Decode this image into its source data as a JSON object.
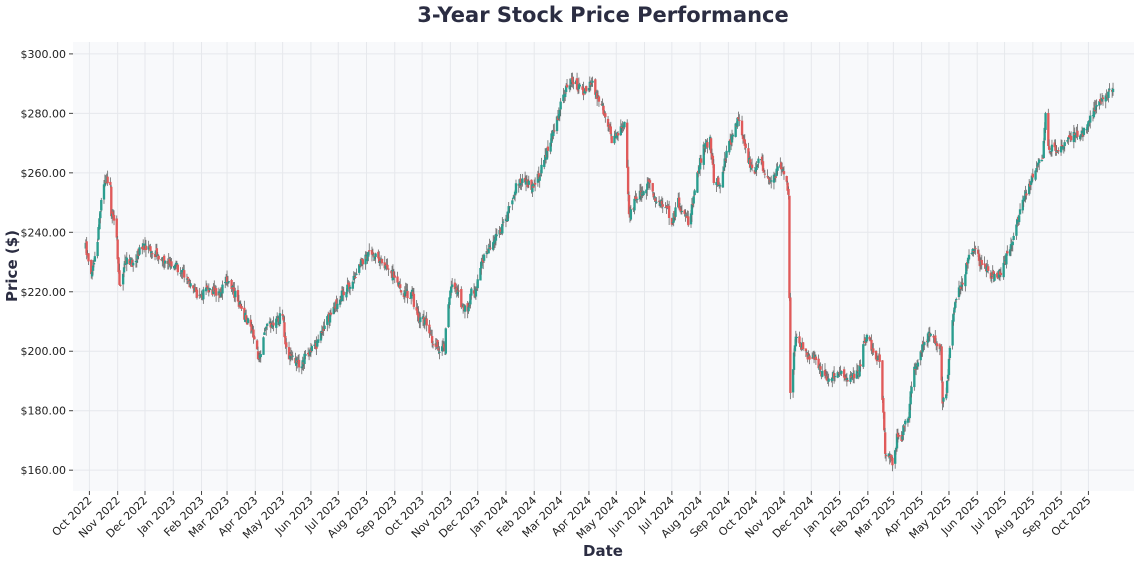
{
  "chart_data": {
    "type": "candlestick",
    "title": "3-Year Stock Price Performance",
    "xlabel": "Date",
    "ylabel": "Price ($)",
    "ylim": [
      153,
      304
    ],
    "yticks": [
      160,
      180,
      200,
      220,
      240,
      260,
      280,
      300
    ],
    "ytick_labels": [
      "$160.00",
      "$180.00",
      "$200.00",
      "$220.00",
      "$240.00",
      "$260.00",
      "$280.00",
      "$300.00"
    ],
    "xlim": [
      "2022-09-13",
      "2025-11-20"
    ],
    "xticks": [
      "2022-10-01",
      "2022-11-01",
      "2022-12-01",
      "2023-01-01",
      "2023-02-01",
      "2023-03-01",
      "2023-04-01",
      "2023-05-01",
      "2023-06-01",
      "2023-07-01",
      "2023-08-01",
      "2023-09-01",
      "2023-10-01",
      "2023-11-01",
      "2023-12-01",
      "2024-01-01",
      "2024-02-01",
      "2024-03-01",
      "2024-04-01",
      "2024-05-01",
      "2024-06-01",
      "2024-07-01",
      "2024-08-01",
      "2024-09-01",
      "2024-10-01",
      "2024-11-01",
      "2024-12-01",
      "2025-01-01",
      "2025-02-01",
      "2025-03-01",
      "2025-04-01",
      "2025-05-01",
      "2025-06-01",
      "2025-07-01",
      "2025-08-01",
      "2025-09-01",
      "2025-10-01"
    ],
    "xtick_labels": [
      "Oct 2022",
      "Nov 2022",
      "Dec 2022",
      "Jan 2023",
      "Feb 2023",
      "Mar 2023",
      "Apr 2023",
      "May 2023",
      "Jun 2023",
      "Jul 2023",
      "Aug 2023",
      "Sep 2023",
      "Oct 2023",
      "Nov 2023",
      "Dec 2023",
      "Jan 2024",
      "Feb 2024",
      "Mar 2024",
      "Apr 2024",
      "May 2024",
      "Jun 2024",
      "Jul 2024",
      "Aug 2024",
      "Sep 2024",
      "Oct 2024",
      "Nov 2024",
      "Dec 2024",
      "Jan 2025",
      "Feb 2025",
      "Mar 2025",
      "Apr 2025",
      "May 2025",
      "Jun 2025",
      "Jul 2025",
      "Aug 2025",
      "Sep 2025",
      "Oct 2025"
    ],
    "up_color": "#2a9d8f",
    "down_color": "#e05a5a",
    "wick_color": "#666666",
    "grid": true,
    "start_date": "2022-09-27",
    "end_date": "2025-10-28",
    "close_anchors": [
      [
        "2022-09-27",
        235
      ],
      [
        "2022-10-02",
        226
      ],
      [
        "2022-10-08",
        232
      ],
      [
        "2022-10-14",
        250
      ],
      [
        "2022-10-19",
        258
      ],
      [
        "2022-10-24",
        256
      ],
      [
        "2022-10-25",
        246
      ],
      [
        "2022-10-30",
        243
      ],
      [
        "2022-11-03",
        222
      ],
      [
        "2022-11-10",
        230
      ],
      [
        "2022-11-20",
        230
      ],
      [
        "2022-11-28",
        236
      ],
      [
        "2022-12-10",
        233
      ],
      [
        "2022-12-25",
        230
      ],
      [
        "2023-01-10",
        227
      ],
      [
        "2023-01-20",
        222
      ],
      [
        "2023-01-30",
        218
      ],
      [
        "2023-02-10",
        221
      ],
      [
        "2023-02-20",
        219
      ],
      [
        "2023-03-01",
        224
      ],
      [
        "2023-03-10",
        219
      ],
      [
        "2023-03-20",
        212
      ],
      [
        "2023-03-28",
        208
      ],
      [
        "2023-04-02",
        200
      ],
      [
        "2023-04-06",
        197
      ],
      [
        "2023-04-12",
        208
      ],
      [
        "2023-04-22",
        210
      ],
      [
        "2023-05-01",
        212
      ],
      [
        "2023-05-05",
        200
      ],
      [
        "2023-05-12",
        197
      ],
      [
        "2023-05-20",
        195
      ],
      [
        "2023-05-30",
        200
      ],
      [
        "2023-06-08",
        202
      ],
      [
        "2023-06-15",
        208
      ],
      [
        "2023-06-25",
        214
      ],
      [
        "2023-07-05",
        219
      ],
      [
        "2023-07-15",
        222
      ],
      [
        "2023-07-25",
        229
      ],
      [
        "2023-08-05",
        233
      ],
      [
        "2023-08-20",
        229
      ],
      [
        "2023-09-01",
        225
      ],
      [
        "2023-09-10",
        220
      ],
      [
        "2023-09-20",
        219
      ],
      [
        "2023-09-26",
        211
      ],
      [
        "2023-10-05",
        210
      ],
      [
        "2023-10-12",
        204
      ],
      [
        "2023-10-20",
        201
      ],
      [
        "2023-10-26",
        201
      ],
      [
        "2023-10-28",
        212
      ],
      [
        "2023-11-01",
        222
      ],
      [
        "2023-11-08",
        221
      ],
      [
        "2023-11-14",
        214
      ],
      [
        "2023-11-20",
        214
      ],
      [
        "2023-11-25",
        221
      ],
      [
        "2023-11-28",
        220
      ],
      [
        "2023-12-05",
        230
      ],
      [
        "2023-12-15",
        236
      ],
      [
        "2023-12-25",
        240
      ],
      [
        "2024-01-05",
        248
      ],
      [
        "2024-01-12",
        256
      ],
      [
        "2024-01-20",
        258
      ],
      [
        "2024-01-30",
        255
      ],
      [
        "2024-02-05",
        259
      ],
      [
        "2024-02-10",
        262
      ],
      [
        "2024-02-18",
        270
      ],
      [
        "2024-02-25",
        277
      ],
      [
        "2024-03-05",
        287
      ],
      [
        "2024-03-12",
        291
      ],
      [
        "2024-03-20",
        289
      ],
      [
        "2024-03-28",
        287
      ],
      [
        "2024-04-04",
        290
      ],
      [
        "2024-04-12",
        285
      ],
      [
        "2024-04-20",
        278
      ],
      [
        "2024-04-26",
        271
      ],
      [
        "2024-05-05",
        275
      ],
      [
        "2024-05-12",
        278
      ],
      [
        "2024-05-13",
        261
      ],
      [
        "2024-05-15",
        246
      ],
      [
        "2024-05-25",
        252
      ],
      [
        "2024-06-05",
        256
      ],
      [
        "2024-06-15",
        251
      ],
      [
        "2024-06-25",
        248
      ],
      [
        "2024-07-01",
        244
      ],
      [
        "2024-07-08",
        250
      ],
      [
        "2024-07-15",
        246
      ],
      [
        "2024-07-20",
        243
      ],
      [
        "2024-07-28",
        258
      ],
      [
        "2024-08-05",
        269
      ],
      [
        "2024-08-12",
        271
      ],
      [
        "2024-08-16",
        258
      ],
      [
        "2024-08-22",
        256
      ],
      [
        "2024-08-30",
        267
      ],
      [
        "2024-09-06",
        272
      ],
      [
        "2024-09-12",
        279
      ],
      [
        "2024-09-17",
        270
      ],
      [
        "2024-09-25",
        263
      ],
      [
        "2024-10-01",
        260
      ],
      [
        "2024-10-05",
        266
      ],
      [
        "2024-10-12",
        259
      ],
      [
        "2024-10-20",
        258
      ],
      [
        "2024-10-28",
        262
      ],
      [
        "2024-11-03",
        258
      ],
      [
        "2024-11-06",
        252
      ],
      [
        "2024-11-08",
        187
      ],
      [
        "2024-11-10",
        192
      ],
      [
        "2024-11-14",
        206
      ],
      [
        "2024-11-20",
        202
      ],
      [
        "2024-11-28",
        198
      ],
      [
        "2024-12-05",
        199
      ],
      [
        "2024-12-12",
        193
      ],
      [
        "2024-12-20",
        191
      ],
      [
        "2024-12-30",
        193
      ],
      [
        "2025-01-08",
        190
      ],
      [
        "2025-01-15",
        191
      ],
      [
        "2025-01-22",
        193
      ],
      [
        "2025-01-28",
        203
      ],
      [
        "2025-02-02",
        207
      ],
      [
        "2025-02-06",
        200
      ],
      [
        "2025-02-12",
        197
      ],
      [
        "2025-02-15",
        198
      ],
      [
        "2025-02-20",
        166
      ],
      [
        "2025-02-28",
        162
      ],
      [
        "2025-03-05",
        171
      ],
      [
        "2025-03-10",
        171
      ],
      [
        "2025-03-14",
        176
      ],
      [
        "2025-03-18",
        177
      ],
      [
        "2025-03-22",
        193
      ],
      [
        "2025-03-28",
        196
      ],
      [
        "2025-04-05",
        205
      ],
      [
        "2025-04-12",
        205
      ],
      [
        "2025-04-18",
        201
      ],
      [
        "2025-04-22",
        201
      ],
      [
        "2025-04-24",
        182
      ],
      [
        "2025-04-28",
        187
      ],
      [
        "2025-05-02",
        200
      ],
      [
        "2025-05-06",
        213
      ],
      [
        "2025-05-12",
        220
      ],
      [
        "2025-05-18",
        224
      ],
      [
        "2025-05-22",
        232
      ],
      [
        "2025-05-28",
        235
      ],
      [
        "2025-06-05",
        229
      ],
      [
        "2025-06-12",
        227
      ],
      [
        "2025-06-20",
        225
      ],
      [
        "2025-06-28",
        226
      ],
      [
        "2025-07-05",
        234
      ],
      [
        "2025-07-12",
        240
      ],
      [
        "2025-07-20",
        250
      ],
      [
        "2025-07-28",
        255
      ],
      [
        "2025-08-05",
        262
      ],
      [
        "2025-08-12",
        266
      ],
      [
        "2025-08-15",
        279
      ],
      [
        "2025-08-18",
        268
      ],
      [
        "2025-08-28",
        268
      ],
      [
        "2025-09-05",
        270
      ],
      [
        "2025-09-12",
        272
      ],
      [
        "2025-09-20",
        273
      ],
      [
        "2025-09-28",
        274
      ],
      [
        "2025-10-05",
        280
      ],
      [
        "2025-10-15",
        285
      ],
      [
        "2025-10-28",
        288
      ]
    ]
  }
}
